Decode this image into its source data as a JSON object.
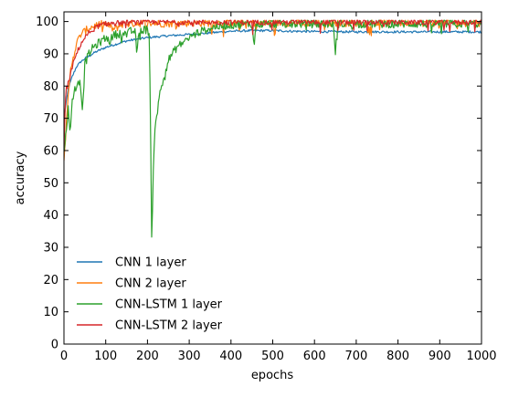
{
  "chart_data": {
    "type": "line",
    "xlabel": "epochs",
    "ylabel": "accuracy",
    "xlim": [
      0,
      1000
    ],
    "ylim": [
      0,
      103
    ],
    "x_ticks": [
      0,
      100,
      200,
      300,
      400,
      500,
      600,
      700,
      800,
      900,
      1000
    ],
    "y_ticks": [
      0,
      10,
      20,
      30,
      40,
      50,
      60,
      70,
      80,
      90,
      100
    ],
    "grid": false,
    "legend_position": "bottom-left",
    "series": [
      {
        "name": "CNN 1 layer",
        "color": "#1f77b4",
        "points": [
          [
            0,
            70
          ],
          [
            10,
            79
          ],
          [
            20,
            83
          ],
          [
            30,
            86
          ],
          [
            40,
            87.5
          ],
          [
            50,
            88.5
          ],
          [
            75,
            90.5
          ],
          [
            100,
            92
          ],
          [
            150,
            94
          ],
          [
            200,
            95
          ],
          [
            250,
            95.6
          ],
          [
            300,
            96
          ],
          [
            350,
            96.5
          ],
          [
            400,
            97
          ],
          [
            450,
            97.2
          ],
          [
            500,
            97.2
          ],
          [
            550,
            97
          ],
          [
            600,
            96.9
          ],
          [
            700,
            96.8
          ],
          [
            800,
            96.8
          ],
          [
            900,
            96.8
          ],
          [
            1000,
            96.8
          ]
        ]
      },
      {
        "name": "CNN 2 layer",
        "color": "#ff7f0e",
        "points": [
          [
            0,
            58
          ],
          [
            5,
            66
          ],
          [
            10,
            76
          ],
          [
            15,
            84
          ],
          [
            20,
            88
          ],
          [
            30,
            93
          ],
          [
            40,
            96
          ],
          [
            50,
            97
          ],
          [
            60,
            98
          ],
          [
            80,
            99
          ],
          [
            100,
            99.3
          ],
          [
            120,
            97.5
          ],
          [
            140,
            99.2
          ],
          [
            160,
            99.4
          ],
          [
            180,
            99.5
          ],
          [
            200,
            99.5
          ],
          [
            250,
            99.4
          ],
          [
            300,
            99.6
          ],
          [
            400,
            99.6
          ],
          [
            500,
            99.6
          ],
          [
            600,
            99.6
          ],
          [
            700,
            99.6
          ],
          [
            800,
            99.6
          ],
          [
            900,
            99.6
          ],
          [
            1000,
            99.6
          ]
        ]
      },
      {
        "name": "CNN-LSTM 1 layer",
        "color": "#2ca02c",
        "points": [
          [
            0,
            59
          ],
          [
            5,
            66
          ],
          [
            10,
            73
          ],
          [
            15,
            66
          ],
          [
            20,
            75
          ],
          [
            25,
            79
          ],
          [
            30,
            80
          ],
          [
            35,
            82
          ],
          [
            40,
            80
          ],
          [
            45,
            72
          ],
          [
            50,
            87
          ],
          [
            60,
            90
          ],
          [
            70,
            92
          ],
          [
            80,
            93
          ],
          [
            90,
            94
          ],
          [
            100,
            95
          ],
          [
            110,
            94
          ],
          [
            120,
            96
          ],
          [
            130,
            96
          ],
          [
            140,
            97
          ],
          [
            150,
            96
          ],
          [
            160,
            97
          ],
          [
            170,
            97
          ],
          [
            175,
            90
          ],
          [
            180,
            97
          ],
          [
            190,
            97.5
          ],
          [
            200,
            97.5
          ],
          [
            205,
            96
          ],
          [
            210,
            33
          ],
          [
            215,
            60
          ],
          [
            220,
            70
          ],
          [
            225,
            73
          ],
          [
            230,
            78
          ],
          [
            240,
            83
          ],
          [
            250,
            88
          ],
          [
            260,
            90
          ],
          [
            270,
            92
          ],
          [
            280,
            93
          ],
          [
            290,
            94
          ],
          [
            300,
            95
          ],
          [
            320,
            96.5
          ],
          [
            340,
            97.5
          ],
          [
            360,
            98.3
          ],
          [
            380,
            98.7
          ],
          [
            400,
            99
          ],
          [
            440,
            99.2
          ],
          [
            450,
            99.2
          ],
          [
            455,
            92
          ],
          [
            460,
            99.2
          ],
          [
            500,
            99.3
          ],
          [
            600,
            99.3
          ],
          [
            645,
            99.3
          ],
          [
            650,
            92
          ],
          [
            655,
            99.3
          ],
          [
            700,
            99.3
          ],
          [
            800,
            99.3
          ],
          [
            900,
            99.3
          ],
          [
            1000,
            99.3
          ]
        ]
      },
      {
        "name": "CNN-LSTM 2 layer",
        "color": "#d62728",
        "points": [
          [
            0,
            60
          ],
          [
            3,
            75
          ],
          [
            6,
            79
          ],
          [
            10,
            81
          ],
          [
            15,
            83
          ],
          [
            20,
            86
          ],
          [
            30,
            90
          ],
          [
            40,
            93
          ],
          [
            50,
            95
          ],
          [
            60,
            96.5
          ],
          [
            70,
            97.5
          ],
          [
            80,
            98.5
          ],
          [
            100,
            99.3
          ],
          [
            150,
            99.7
          ],
          [
            200,
            99.8
          ],
          [
            300,
            99.8
          ],
          [
            400,
            99.8
          ],
          [
            500,
            99.8
          ],
          [
            600,
            99.8
          ],
          [
            700,
            99.8
          ],
          [
            800,
            99.8
          ],
          [
            900,
            99.8
          ],
          [
            1000,
            99.8
          ]
        ]
      }
    ]
  }
}
